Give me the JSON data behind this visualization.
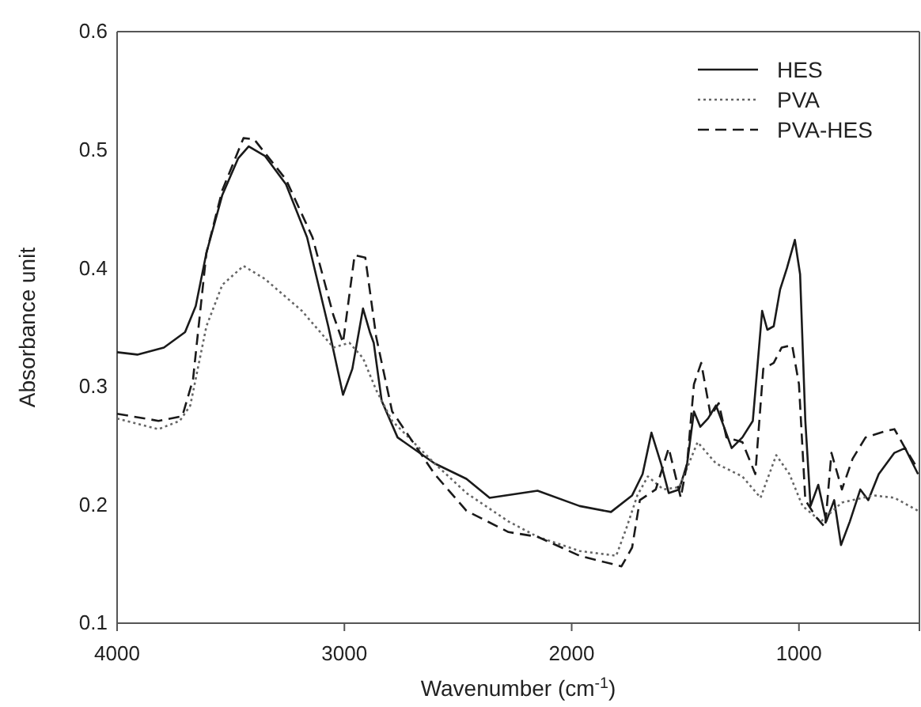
{
  "chart_data": {
    "type": "line",
    "xlabel": "Wavenumber (cm$^{-1}$)",
    "ylabel": "Absorbance unit",
    "xlim": [
      4000,
      470
    ],
    "xticks": [
      4000,
      3000,
      2000,
      1000
    ],
    "ylim": [
      0.1,
      0.6
    ],
    "yticks": [
      0.1,
      0.2,
      0.3,
      0.4,
      0.5,
      0.6
    ],
    "grid": false,
    "legend": "top right",
    "marker": "none",
    "series": [
      {
        "name": "HES",
        "color": "#1a1a1a",
        "line_style": "solid",
        "x": [
          4000,
          3911,
          3794,
          3701,
          3654,
          3607,
          3537,
          3467,
          3421,
          3350,
          3257,
          3164,
          3071,
          3006,
          2965,
          2918,
          2888,
          2871,
          2836,
          2766,
          2603,
          2463,
          2361,
          2150,
          1965,
          1827,
          1734,
          1688,
          1649,
          1607,
          1573,
          1527,
          1492,
          1462,
          1434,
          1400,
          1365,
          1330,
          1296,
          1249,
          1203,
          1162,
          1139,
          1111,
          1083,
          1053,
          1018,
          995,
          972,
          949,
          915,
          880,
          845,
          815,
          776,
          730,
          695,
          649,
          580,
          533,
          476
        ],
        "values": [
          0.329,
          0.327,
          0.333,
          0.346,
          0.368,
          0.413,
          0.462,
          0.493,
          0.503,
          0.495,
          0.471,
          0.426,
          0.351,
          0.293,
          0.315,
          0.366,
          0.346,
          0.337,
          0.288,
          0.257,
          0.235,
          0.222,
          0.206,
          0.212,
          0.199,
          0.194,
          0.208,
          0.226,
          0.261,
          0.235,
          0.21,
          0.213,
          0.235,
          0.279,
          0.266,
          0.273,
          0.284,
          0.266,
          0.248,
          0.257,
          0.271,
          0.364,
          0.348,
          0.351,
          0.382,
          0.4,
          0.424,
          0.395,
          0.271,
          0.199,
          0.217,
          0.186,
          0.204,
          0.166,
          0.186,
          0.213,
          0.204,
          0.226,
          0.244,
          0.248,
          0.226
        ]
      },
      {
        "name": "PVA",
        "color": "#666666",
        "line_style": "dotted",
        "x": [
          4000,
          3818,
          3724,
          3678,
          3607,
          3537,
          3444,
          3350,
          3187,
          3048,
          2978,
          2918,
          2860,
          2790,
          2603,
          2463,
          2278,
          2150,
          1965,
          1804,
          1758,
          1711,
          1665,
          1596,
          1527,
          1446,
          1365,
          1249,
          1169,
          1100,
          1042,
          984,
          903,
          811,
          672,
          580,
          476
        ],
        "values": [
          0.273,
          0.264,
          0.271,
          0.284,
          0.351,
          0.386,
          0.402,
          0.391,
          0.364,
          0.333,
          0.337,
          0.324,
          0.297,
          0.271,
          0.235,
          0.21,
          0.186,
          0.173,
          0.161,
          0.157,
          0.181,
          0.208,
          0.224,
          0.213,
          0.215,
          0.253,
          0.235,
          0.224,
          0.206,
          0.242,
          0.226,
          0.199,
          0.186,
          0.202,
          0.208,
          0.206,
          0.195
        ]
      },
      {
        "name": "PVA-HES",
        "color": "#1a1a1a",
        "line_style": "dashed",
        "x": [
          4000,
          3818,
          3713,
          3666,
          3607,
          3537,
          3444,
          3397,
          3257,
          3140,
          3048,
          3006,
          2955,
          2908,
          2860,
          2790,
          2603,
          2463,
          2278,
          2150,
          1965,
          1781,
          1734,
          1700,
          1630,
          1573,
          1520,
          1492,
          1462,
          1430,
          1388,
          1353,
          1319,
          1249,
          1192,
          1157,
          1111,
          1076,
          1030,
          1000,
          972,
          926,
          885,
          857,
          811,
          764,
          707,
          626,
          580,
          533,
          476
        ],
        "values": [
          0.277,
          0.271,
          0.275,
          0.306,
          0.413,
          0.466,
          0.51,
          0.509,
          0.475,
          0.426,
          0.36,
          0.337,
          0.411,
          0.409,
          0.342,
          0.279,
          0.226,
          0.195,
          0.177,
          0.173,
          0.157,
          0.148,
          0.164,
          0.204,
          0.213,
          0.248,
          0.206,
          0.235,
          0.302,
          0.32,
          0.275,
          0.286,
          0.257,
          0.253,
          0.226,
          0.315,
          0.32,
          0.333,
          0.335,
          0.302,
          0.204,
          0.19,
          0.181,
          0.244,
          0.213,
          0.239,
          0.257,
          0.262,
          0.264,
          0.248,
          0.23
        ]
      }
    ]
  }
}
